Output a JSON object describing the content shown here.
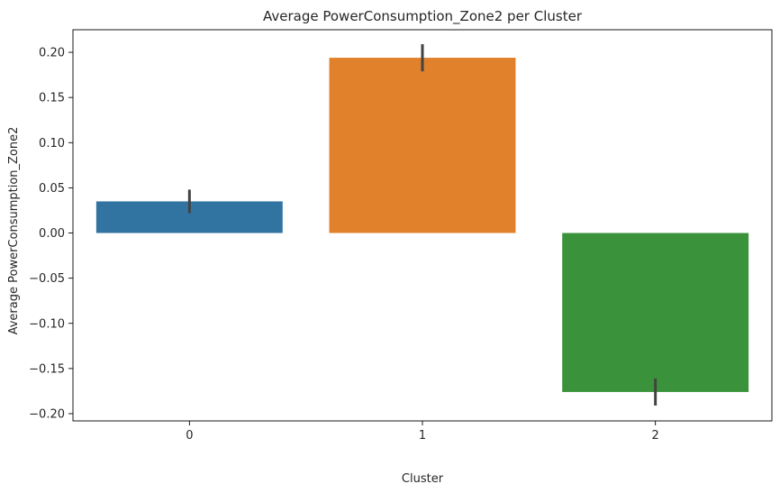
{
  "chart_data": {
    "type": "bar",
    "title": "Average PowerConsumption_Zone2 per Cluster",
    "xlabel": "Cluster",
    "ylabel": "Average PowerConsumption_Zone2",
    "categories": [
      "0",
      "1",
      "2"
    ],
    "values": [
      0.035,
      0.194,
      -0.176
    ],
    "error_low": [
      0.022,
      0.179,
      -0.191
    ],
    "error_high": [
      0.048,
      0.209,
      -0.161
    ],
    "colors": [
      "#3274a1",
      "#e1812c",
      "#3a923a"
    ],
    "error_color": "#424242",
    "ylim": [
      -0.208,
      0.225
    ],
    "yticks": [
      -0.2,
      -0.15,
      -0.1,
      -0.05,
      0.0,
      0.05,
      0.1,
      0.15,
      0.2
    ],
    "ytick_labels": [
      "−0.20",
      "−0.15",
      "−0.10",
      "−0.05",
      "0.00",
      "0.05",
      "0.10",
      "0.15",
      "0.20"
    ],
    "grid": false,
    "legend": "none"
  }
}
